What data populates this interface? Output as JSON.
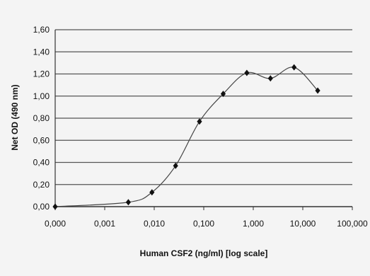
{
  "chart_data": {
    "type": "scatter",
    "title": "",
    "xlabel": "Human CSF2 (ng/ml) [log scale]",
    "ylabel": "Net OD (490 nm)",
    "x_scale": "log",
    "x_ticks": [
      "0,000",
      "0,001",
      "0,010",
      "0,100",
      "1,000",
      "10,000",
      "100,000"
    ],
    "y_ticks": [
      "0,00",
      "0,20",
      "0,40",
      "0,60",
      "0,80",
      "1,00",
      "1,20",
      "1,40",
      "1,60"
    ],
    "ylim": [
      0,
      1.6
    ],
    "grid": "horizontal",
    "legend": "none",
    "series": [
      {
        "color": "#111111",
        "marker": "diamond",
        "line": "smooth",
        "points": [
          {
            "x": 0.0001,
            "y": 0.0
          },
          {
            "x": 0.003,
            "y": 0.04
          },
          {
            "x": 0.009,
            "y": 0.13
          },
          {
            "x": 0.027,
            "y": 0.37
          },
          {
            "x": 0.082,
            "y": 0.77
          },
          {
            "x": 0.247,
            "y": 1.02
          },
          {
            "x": 0.741,
            "y": 1.21
          },
          {
            "x": 2.222,
            "y": 1.16
          },
          {
            "x": 6.667,
            "y": 1.26
          },
          {
            "x": 20.0,
            "y": 1.05
          }
        ]
      }
    ]
  }
}
